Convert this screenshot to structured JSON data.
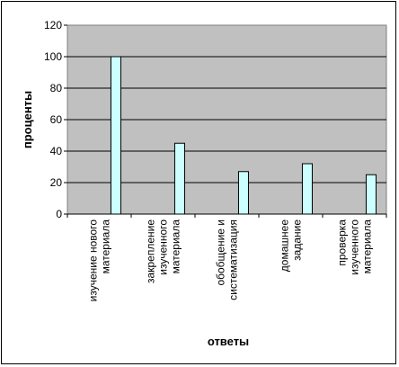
{
  "chart_data": {
    "type": "bar",
    "categories": [
      [
        "изучение нового",
        "материала"
      ],
      [
        "закрепление",
        "изученного",
        "материала"
      ],
      [
        "обобщение и",
        "систематизация"
      ],
      [
        "домашнее",
        "задание"
      ],
      [
        "проверка",
        "изученного",
        "материала"
      ]
    ],
    "values": [
      100,
      45,
      27,
      32,
      25
    ],
    "title": "",
    "xlabel": "ответы",
    "ylabel": "проценты",
    "ylim": [
      0,
      120
    ],
    "yticks": [
      0,
      20,
      40,
      60,
      80,
      100,
      120
    ],
    "grid": true,
    "legend": false,
    "colors": {
      "plot_area": "#c0c0c0",
      "bar_fill": "#ccffff",
      "bar_stroke": "#000000",
      "gridline": "#000000"
    }
  }
}
